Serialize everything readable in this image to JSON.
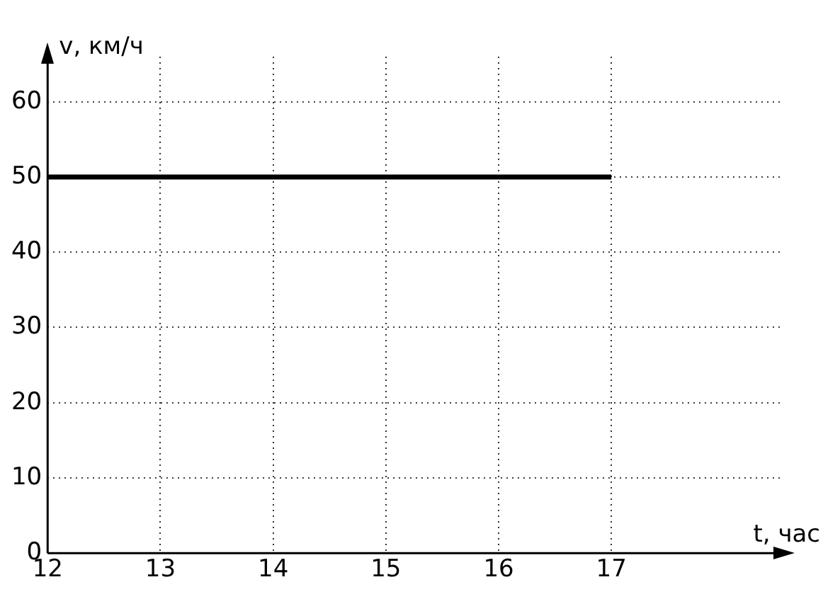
{
  "chart_data": {
    "type": "line",
    "xlabel": "t, час",
    "ylabel": "v, км/ч",
    "xlim": [
      12,
      18.5
    ],
    "ylim": [
      0,
      66
    ],
    "xticks": [
      12,
      13,
      14,
      15,
      16,
      17
    ],
    "yticks": [
      0,
      10,
      20,
      30,
      40,
      50,
      60
    ],
    "grid": true,
    "marker": "none",
    "line_style": "solid",
    "series": [
      {
        "x": [
          12,
          17
        ],
        "values": [
          50,
          50
        ],
        "color": "#000000"
      }
    ]
  }
}
